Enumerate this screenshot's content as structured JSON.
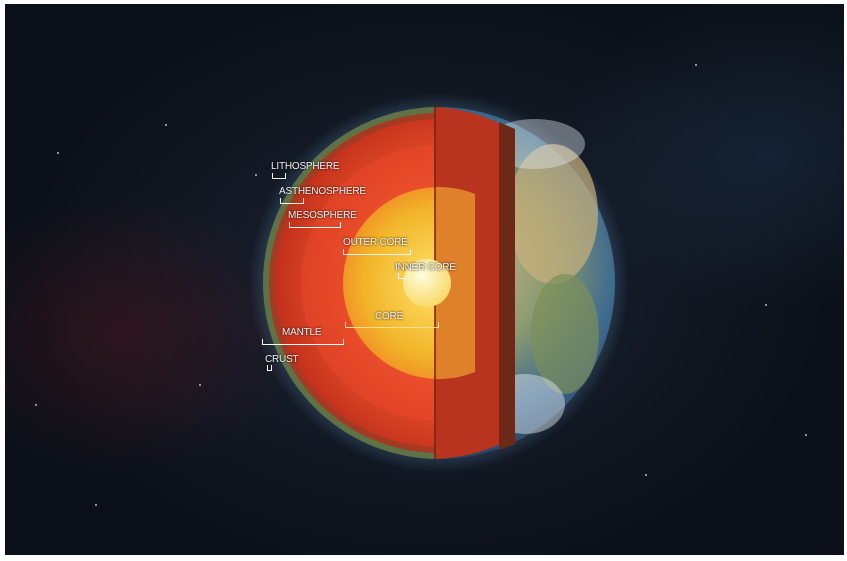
{
  "labels": {
    "lithosphere": "LITHOSPHERE",
    "asthenosphere": "ASTHENOSPHERE",
    "mesosphere": "MESOSPHERE",
    "outer_core": "OUTER CORE",
    "inner_core": "INNER CORE",
    "core": "CORE",
    "mantle": "MANTLE",
    "crust": "CRUST"
  },
  "colors": {
    "space": "#0c1119",
    "mantle": "#d63b1f",
    "mantle_inner": "#ef5a2a",
    "outer_core": "#f0b52a",
    "inner_core": "#fff0a0",
    "crust": "#6a7d52",
    "ocean": "#2c5a8c",
    "land": "#b8a278"
  }
}
